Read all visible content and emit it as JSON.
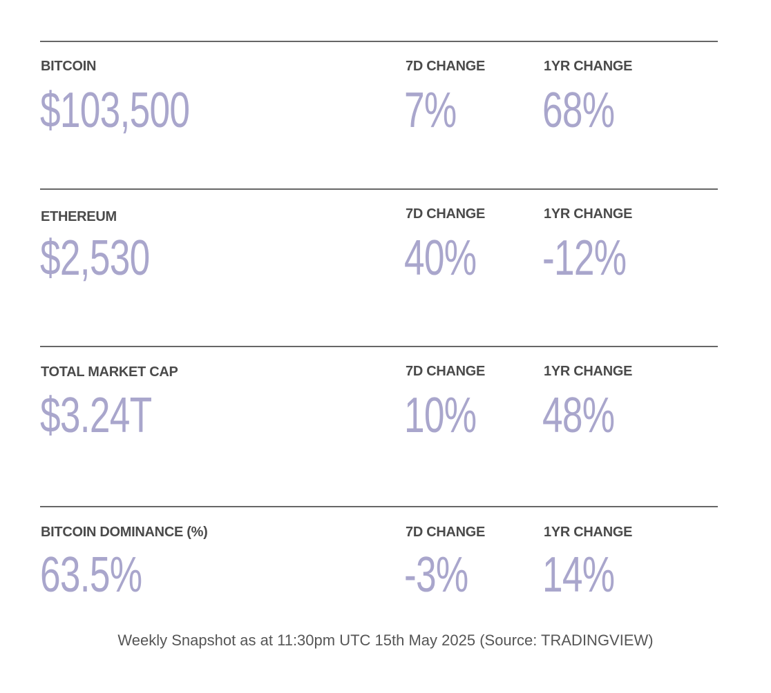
{
  "rows": [
    {
      "name": "BITCOIN",
      "price": "$103,500",
      "change_7d_label": "7D CHANGE",
      "change_7d": "7%",
      "change_1yr_label": "1YR CHANGE",
      "change_1yr": "68%"
    },
    {
      "name": "ETHEREUM",
      "price": "$2,530",
      "change_7d_label": "7D CHANGE",
      "change_7d": "40%",
      "change_1yr_label": "1YR CHANGE",
      "change_1yr": "-12%"
    },
    {
      "name": "TOTAL MARKET CAP",
      "price": "$3.24T",
      "change_7d_label": "7D CHANGE",
      "change_7d": "10%",
      "change_1yr_label": "1YR CHANGE",
      "change_1yr": "48%"
    },
    {
      "name": "BITCOIN DOMINANCE (%)",
      "price": "63.5%",
      "change_7d_label": "7D CHANGE",
      "change_7d": "-3%",
      "change_1yr_label": "1YR CHANGE",
      "change_1yr": "14%"
    }
  ],
  "footer": "Weekly Snapshot as at 11:30pm UTC 15th May 2025 (Source: TRADINGVIEW)",
  "colors": {
    "value": "#a9a6cc",
    "label": "#4a4a4a",
    "divider": "#666666"
  }
}
